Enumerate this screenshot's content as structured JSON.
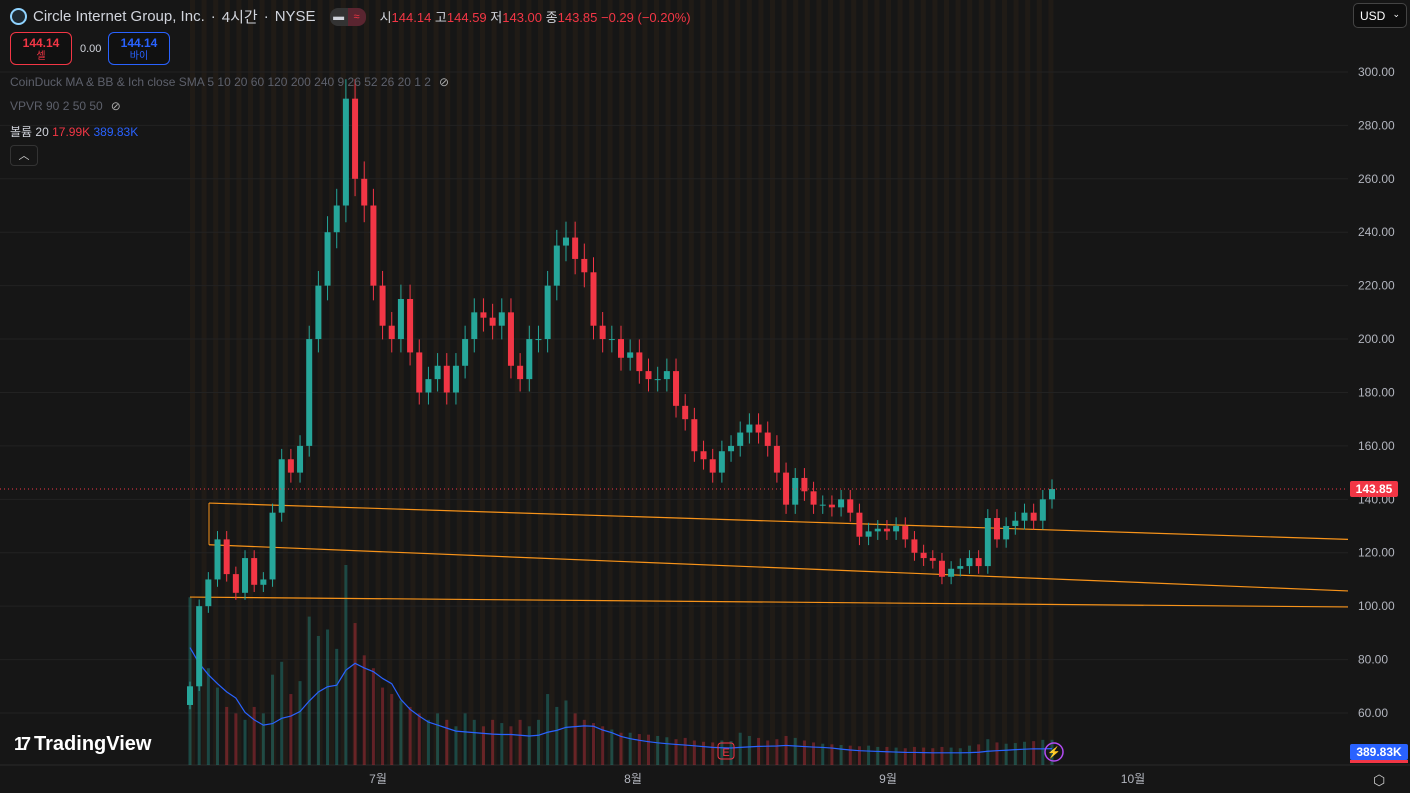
{
  "header": {
    "symbol": "Circle Internet Group, Inc.",
    "interval": "4시간",
    "exchange": "NYSE",
    "open_label": "시",
    "open": "144.14",
    "high_label": "고",
    "high": "144.59",
    "low_label": "저",
    "low": "143.00",
    "close_label": "종",
    "close": "143.85",
    "change": "−0.29 (−0.20%)"
  },
  "trade": {
    "sell_price": "144.14",
    "sell_label": "셀",
    "spread": "0.00",
    "buy_price": "144.14",
    "buy_label": "바이"
  },
  "indicators": {
    "ma": "CoinDuck MA & BB & Ich close SMA 5 10 20 60 120 200 240 9 26 52 26 20 1 2",
    "vpvr": "VPVR 90 2 50 50",
    "volume_label": "볼륨 20",
    "volume_value": "17.99K",
    "volume_sma": "389.83K"
  },
  "currency": "USD",
  "brand": "TradingView",
  "colors": {
    "up": "#26a69a",
    "down": "#f23645",
    "trendline": "#f7931a",
    "volume_sma": "#2962ff",
    "background": "#161616"
  },
  "icons": {
    "eye_off": "eye-off-icon",
    "chevron_up": "chevron-up-icon",
    "settings": "settings-icon",
    "earnings": "earnings-icon",
    "lightning": "lightning-icon"
  },
  "chart_data": {
    "type": "candlestick",
    "ylim": [
      50,
      310
    ],
    "yticks": [
      "300.00",
      "280.00",
      "260.00",
      "240.00",
      "220.00",
      "200.00",
      "180.00",
      "160.00",
      "140.00",
      "120.00",
      "100.00",
      "80.00",
      "60.00"
    ],
    "xticks": [
      "7월",
      "8월",
      "9월",
      "10월"
    ],
    "last_price": "143.85",
    "last_volume_sma": "389.83K",
    "closes": [
      70,
      100,
      110,
      125,
      112,
      105,
      118,
      108,
      110,
      135,
      155,
      150,
      160,
      200,
      220,
      240,
      250,
      290,
      260,
      250,
      220,
      205,
      200,
      215,
      195,
      180,
      185,
      190,
      180,
      190,
      200,
      210,
      208,
      205,
      210,
      190,
      185,
      200,
      200,
      220,
      235,
      238,
      230,
      225,
      205,
      200,
      200,
      193,
      195,
      188,
      185,
      185,
      188,
      175,
      170,
      158,
      155,
      150,
      158,
      160,
      165,
      168,
      165,
      160,
      150,
      138,
      148,
      143,
      138,
      138,
      137,
      140,
      135,
      126,
      128,
      129,
      128,
      130,
      125,
      120,
      118,
      117,
      111,
      114,
      115,
      118,
      115,
      133,
      125,
      130,
      132,
      135,
      132,
      140,
      143.85
    ],
    "volumes_k": [
      2600,
      1900,
      1500,
      1200,
      900,
      800,
      700,
      900,
      800,
      1400,
      1600,
      1100,
      1300,
      2300,
      2000,
      2100,
      1800,
      3100,
      2200,
      1700,
      1500,
      1200,
      1100,
      1000,
      900,
      800,
      700,
      800,
      700,
      600,
      800,
      700,
      600,
      700,
      650,
      600,
      700,
      600,
      700,
      1100,
      900,
      1000,
      800,
      700,
      650,
      600,
      550,
      500,
      500,
      480,
      470,
      450,
      430,
      400,
      420,
      380,
      360,
      350,
      380,
      370,
      500,
      450,
      420,
      380,
      400,
      450,
      420,
      380,
      350,
      330,
      320,
      310,
      300,
      290,
      300,
      280,
      280,
      270,
      260,
      280,
      270,
      260,
      280,
      270,
      260,
      300,
      320,
      400,
      350,
      330,
      340,
      360,
      370,
      390,
      390
    ],
    "trendlines": [
      {
        "from": 138.6,
        "to": 125
      },
      {
        "from": 123,
        "to": 105.7
      },
      {
        "from": 103.4,
        "to": 99.7
      }
    ]
  }
}
